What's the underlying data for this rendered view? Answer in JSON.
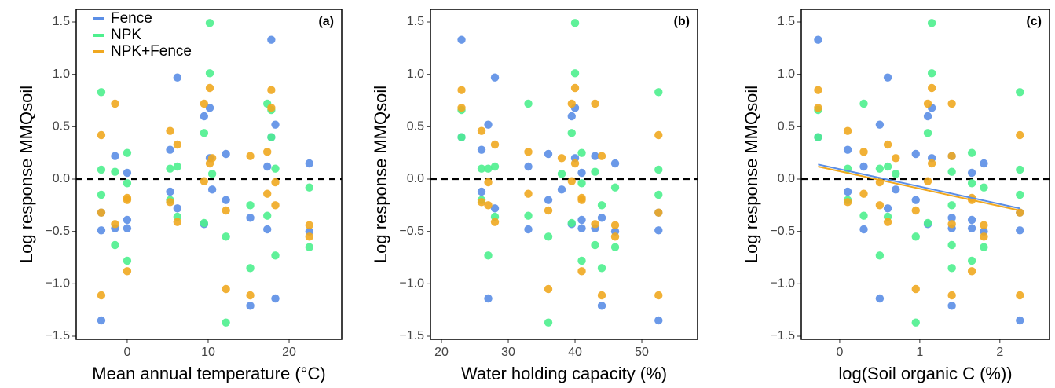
{
  "chart_data": [
    {
      "type": "scatter",
      "panel_label": "(a)",
      "x_label": "Mean annual temperature (°C)",
      "y_label": "Log response MMQsoil",
      "xlim": [
        -6.3,
        26.5
      ],
      "ylim": [
        -1.53,
        1.62
      ],
      "xticks": [
        0,
        10,
        20
      ],
      "yticks": [
        {
          "value": -1.5,
          "label": "−1.5"
        },
        {
          "value": -1,
          "label": "−1.0"
        },
        {
          "value": -0.5,
          "label": "−0.5"
        },
        {
          "value": 0,
          "label": "0.0"
        },
        0.5,
        {
          "value": 1,
          "label": "1.0"
        },
        1.5
      ],
      "hline": 0,
      "legend": "top-left",
      "series": [
        {
          "name": "Fence",
          "color": "#5b8ee6",
          "x": [
            -3.2,
            -3.2,
            -3.2,
            -1.5,
            -1.5,
            0,
            0,
            0,
            5.3,
            5.3,
            6.2,
            6.2,
            9.5,
            9.5,
            10.2,
            10.2,
            10.5,
            12.2,
            12.2,
            15.2,
            15.2,
            17.3,
            17.3,
            17.8,
            17.8,
            18.3,
            18.3,
            22.5,
            22.5
          ],
          "values": [
            -1.35,
            -0.49,
            -0.32,
            0.22,
            -0.47,
            -0.47,
            0.06,
            -0.39,
            0.28,
            -0.12,
            0.97,
            -0.28,
            0.6,
            -0.43,
            0.68,
            0.2,
            -0.1,
            0.24,
            -0.2,
            -1.21,
            -0.37,
            0.12,
            -0.48,
            1.33,
            0.4,
            -1.14,
            0.52,
            0.15,
            -0.5
          ]
        },
        {
          "name": "NPK",
          "color": "#4ef08e",
          "x": [
            -3.2,
            -3.2,
            -3.2,
            -1.5,
            -1.5,
            0,
            0,
            0,
            5.3,
            5.3,
            6.2,
            6.2,
            9.5,
            9.5,
            10.2,
            10.2,
            10.5,
            12.2,
            12.2,
            15.2,
            15.2,
            17.3,
            17.3,
            17.8,
            17.8,
            18.3,
            18.3,
            22.5,
            22.5
          ],
          "values": [
            0.83,
            0.09,
            -0.15,
            -0.63,
            0.07,
            -0.78,
            0.25,
            -0.04,
            0.1,
            -0.2,
            0.12,
            -0.36,
            0.44,
            -0.42,
            1.49,
            1.01,
            0.05,
            -1.37,
            -0.55,
            -0.85,
            -0.25,
            0.72,
            -0.35,
            0.4,
            0.66,
            -0.73,
            0.1,
            -0.65,
            -0.08
          ]
        },
        {
          "name": "NPK+Fence",
          "color": "#f0a820",
          "x": [
            -3.2,
            -3.2,
            -3.2,
            -1.5,
            -1.5,
            0,
            0,
            0,
            5.3,
            5.3,
            6.2,
            6.2,
            9.5,
            9.5,
            10.2,
            10.2,
            10.5,
            12.2,
            12.2,
            15.2,
            15.2,
            17.3,
            17.3,
            17.8,
            17.8,
            18.3,
            18.3,
            22.5,
            22.5
          ],
          "values": [
            -1.11,
            0.42,
            -0.32,
            0.72,
            -0.43,
            -0.88,
            -0.2,
            -0.18,
            0.46,
            -0.22,
            0.33,
            -0.41,
            0.72,
            -0.02,
            0.87,
            0.15,
            0.2,
            -1.05,
            -0.3,
            -1.11,
            0.22,
            0.26,
            -0.14,
            0.85,
            0.68,
            -0.03,
            -0.25,
            -0.44,
            -0.55
          ]
        }
      ]
    },
    {
      "type": "scatter",
      "panel_label": "(b)",
      "x_label": "Water holding capacity (%)",
      "y_label": "Log response MMQsoil",
      "xlim": [
        18.35,
        58.35
      ],
      "ylim": [
        -1.53,
        1.62
      ],
      "xticks": [
        20,
        30,
        40,
        50
      ],
      "yticks": [
        {
          "value": -1.5,
          "label": "−1.5"
        },
        {
          "value": -1,
          "label": "−1.0"
        },
        {
          "value": -0.5,
          "label": "−0.5"
        },
        {
          "value": 0,
          "label": "0.0"
        },
        0.5,
        {
          "value": 1,
          "label": "1.0"
        },
        1.5
      ],
      "hline": 0,
      "series": [
        {
          "color": "#5b8ee6",
          "x": [
            52.5,
            52.5,
            52.5,
            43,
            43,
            41,
            41,
            41,
            26,
            26,
            28,
            28,
            39.5,
            39.5,
            40,
            40,
            38,
            36,
            36,
            44,
            44,
            33,
            33,
            23,
            23,
            27,
            27,
            46,
            46
          ],
          "values": [
            -1.35,
            -0.49,
            -0.32,
            0.22,
            -0.47,
            -0.47,
            0.06,
            -0.39,
            0.28,
            -0.12,
            0.97,
            -0.28,
            0.6,
            -0.43,
            0.68,
            0.2,
            -0.1,
            0.24,
            -0.2,
            -1.21,
            -0.37,
            0.12,
            -0.48,
            1.33,
            0.4,
            -1.14,
            0.52,
            0.15,
            -0.5
          ]
        },
        {
          "color": "#4ef08e",
          "x": [
            52.5,
            52.5,
            52.5,
            43,
            43,
            41,
            41,
            41,
            26,
            26,
            28,
            28,
            39.5,
            39.5,
            40,
            40,
            38,
            36,
            36,
            44,
            44,
            33,
            33,
            23,
            23,
            27,
            27,
            46,
            46
          ],
          "values": [
            0.83,
            0.09,
            -0.15,
            -0.63,
            0.07,
            -0.78,
            0.25,
            -0.04,
            0.1,
            -0.2,
            0.12,
            -0.36,
            0.44,
            -0.42,
            1.49,
            1.01,
            0.05,
            -1.37,
            -0.55,
            -0.85,
            -0.25,
            0.72,
            -0.35,
            0.4,
            0.66,
            -0.73,
            0.1,
            -0.65,
            -0.08
          ]
        },
        {
          "color": "#f0a820",
          "x": [
            52.5,
            52.5,
            52.5,
            43,
            43,
            41,
            41,
            41,
            26,
            26,
            28,
            28,
            39.5,
            39.5,
            40,
            40,
            38,
            36,
            36,
            44,
            44,
            33,
            33,
            23,
            23,
            27,
            27,
            46,
            46
          ],
          "values": [
            -1.11,
            0.42,
            -0.32,
            0.72,
            -0.43,
            -0.88,
            -0.2,
            -0.18,
            0.46,
            -0.22,
            0.33,
            -0.41,
            0.72,
            -0.02,
            0.87,
            0.15,
            0.2,
            -1.05,
            -0.3,
            -1.11,
            0.22,
            0.26,
            -0.14,
            0.85,
            0.68,
            -0.03,
            -0.25,
            -0.44,
            -0.55
          ]
        }
      ]
    },
    {
      "type": "scatter",
      "panel_label": "(c)",
      "x_label": "log(Soil organic C (%))",
      "y_label": "Log response MMQsoil",
      "xlim": [
        -0.48,
        2.62
      ],
      "ylim": [
        -1.53,
        1.62
      ],
      "xticks": [
        0,
        1,
        2
      ],
      "yticks": [
        {
          "value": -1.5,
          "label": "−1.5"
        },
        {
          "value": -1,
          "label": "−1.0"
        },
        {
          "value": -0.5,
          "label": "−0.5"
        },
        {
          "value": 0,
          "label": "0.0"
        },
        0.5,
        {
          "value": 1,
          "label": "1.0"
        },
        1.5
      ],
      "hline": 0,
      "series": [
        {
          "color": "#5b8ee6",
          "fit": [
            [
              -0.27,
              0.14
            ],
            [
              2.25,
              -0.28
            ]
          ],
          "x": [
            2.25,
            2.25,
            2.25,
            1.4,
            1.4,
            1.65,
            1.65,
            1.65,
            0.1,
            0.1,
            0.6,
            0.6,
            1.1,
            1.1,
            1.15,
            1.15,
            0.7,
            0.95,
            0.95,
            1.4,
            1.4,
            0.3,
            0.3,
            -0.27,
            -0.27,
            0.5,
            0.5,
            1.8,
            1.8
          ],
          "values": [
            -1.35,
            -0.49,
            -0.32,
            0.22,
            -0.47,
            -0.47,
            0.06,
            -0.39,
            0.28,
            -0.12,
            0.97,
            -0.28,
            0.6,
            -0.43,
            0.68,
            0.2,
            -0.1,
            0.24,
            -0.2,
            -1.21,
            -0.37,
            0.12,
            -0.48,
            1.33,
            0.4,
            -1.14,
            0.52,
            0.15,
            -0.5
          ]
        },
        {
          "color": "#4ef08e",
          "x": [
            2.25,
            2.25,
            2.25,
            1.4,
            1.4,
            1.65,
            1.65,
            1.65,
            0.1,
            0.1,
            0.6,
            0.6,
            1.1,
            1.1,
            1.15,
            1.15,
            0.7,
            0.95,
            0.95,
            1.4,
            1.4,
            0.3,
            0.3,
            -0.27,
            -0.27,
            0.5,
            0.5,
            1.8,
            1.8
          ],
          "values": [
            0.83,
            0.09,
            -0.15,
            -0.63,
            0.07,
            -0.78,
            0.25,
            -0.04,
            0.1,
            -0.2,
            0.12,
            -0.36,
            0.44,
            -0.42,
            1.49,
            1.01,
            0.05,
            -1.37,
            -0.55,
            -0.85,
            -0.25,
            0.72,
            -0.35,
            0.4,
            0.66,
            -0.73,
            0.1,
            -0.65,
            -0.08
          ]
        },
        {
          "color": "#f0a820",
          "fit": [
            [
              -0.27,
              0.12
            ],
            [
              2.25,
              -0.3
            ]
          ],
          "x": [
            2.25,
            2.25,
            2.25,
            1.4,
            1.4,
            1.65,
            1.65,
            1.65,
            0.1,
            0.1,
            0.6,
            0.6,
            1.1,
            1.1,
            1.15,
            1.15,
            0.7,
            0.95,
            0.95,
            1.4,
            1.4,
            0.3,
            0.3,
            -0.27,
            -0.27,
            0.5,
            0.5,
            1.8,
            1.8
          ],
          "values": [
            -1.11,
            0.42,
            -0.32,
            0.72,
            -0.43,
            -0.88,
            -0.2,
            -0.18,
            0.46,
            -0.22,
            0.33,
            -0.41,
            0.72,
            -0.02,
            0.87,
            0.15,
            0.2,
            -1.05,
            -0.3,
            -1.11,
            0.22,
            0.26,
            -0.14,
            0.85,
            0.68,
            -0.03,
            -0.25,
            -0.44,
            -0.55
          ]
        }
      ]
    }
  ]
}
